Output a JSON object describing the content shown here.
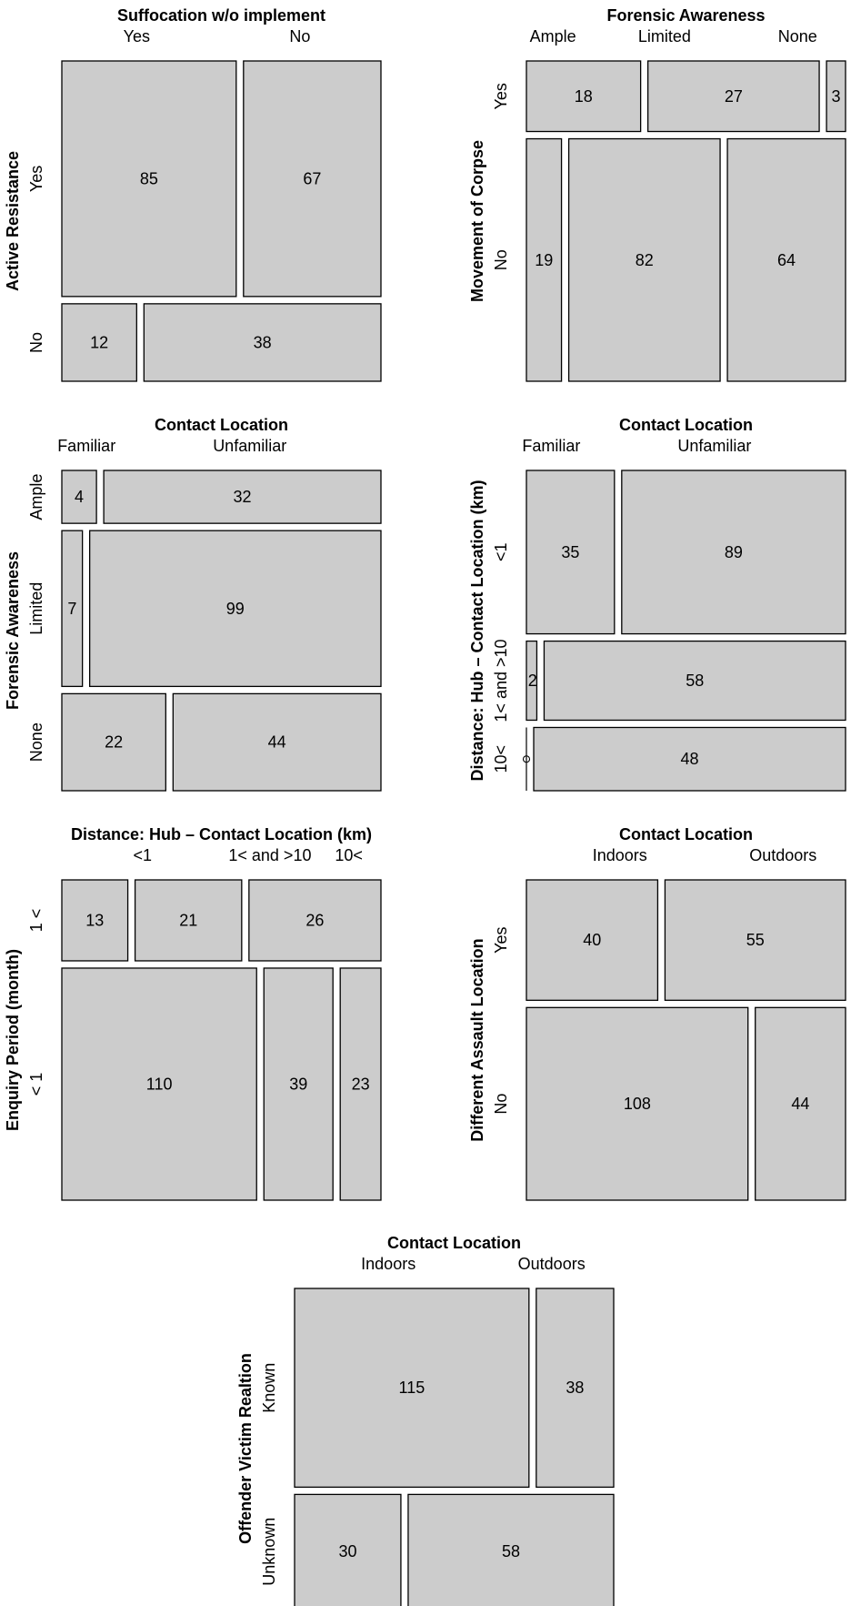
{
  "chart_data": [
    {
      "type": "mosaic",
      "title": "Suffocation w/o implement",
      "ylabel": "Active Resistance",
      "col_levels": [
        "Yes",
        "No"
      ],
      "row_levels": [
        "Yes",
        "No"
      ],
      "counts": [
        [
          85,
          67
        ],
        [
          12,
          38
        ]
      ]
    },
    {
      "type": "mosaic",
      "title": "Forensic Awareness",
      "ylabel": "Movement of Corpse",
      "col_levels": [
        "Ample",
        "Limited",
        "None"
      ],
      "row_levels": [
        "Yes",
        "No"
      ],
      "counts": [
        [
          18,
          27,
          3
        ],
        [
          19,
          82,
          64
        ]
      ]
    },
    {
      "type": "mosaic",
      "title": "Contact Location",
      "ylabel": "Forensic Awareness",
      "col_levels": [
        "Familiar",
        "Unfamiliar"
      ],
      "row_levels": [
        "Ample",
        "Limited",
        "None"
      ],
      "counts": [
        [
          4,
          32
        ],
        [
          7,
          99
        ],
        [
          22,
          44
        ]
      ]
    },
    {
      "type": "mosaic",
      "title": "Contact Location",
      "ylabel": "Distance: Hub – Contact Location (km)",
      "col_levels": [
        "Familiar",
        "Unfamiliar"
      ],
      "row_levels": [
        "<1",
        "1< and >10",
        "10<"
      ],
      "counts": [
        [
          35,
          89
        ],
        [
          2,
          58
        ],
        [
          0,
          48
        ]
      ]
    },
    {
      "type": "mosaic",
      "title": "Distance: Hub – Contact Location (km)",
      "ylabel": "Enquiry Period (month)",
      "col_levels": [
        "<1",
        "1< and >10",
        "10<"
      ],
      "row_levels": [
        "1 <",
        "< 1"
      ],
      "counts": [
        [
          13,
          21,
          26
        ],
        [
          110,
          39,
          23
        ]
      ]
    },
    {
      "type": "mosaic",
      "title": "Contact Location",
      "ylabel": "Different Assault Location",
      "col_levels": [
        "Indoors",
        "Outdoors"
      ],
      "row_levels": [
        "Yes",
        "No"
      ],
      "counts": [
        [
          40,
          55
        ],
        [
          108,
          44
        ]
      ]
    },
    {
      "type": "mosaic",
      "title": "Contact Location",
      "ylabel": "Offender Victim Realtion",
      "col_levels": [
        "Indoors",
        "Outdoors"
      ],
      "row_levels": [
        "Known",
        "Unknown"
      ],
      "counts": [
        [
          115,
          38
        ],
        [
          30,
          58
        ]
      ]
    }
  ]
}
